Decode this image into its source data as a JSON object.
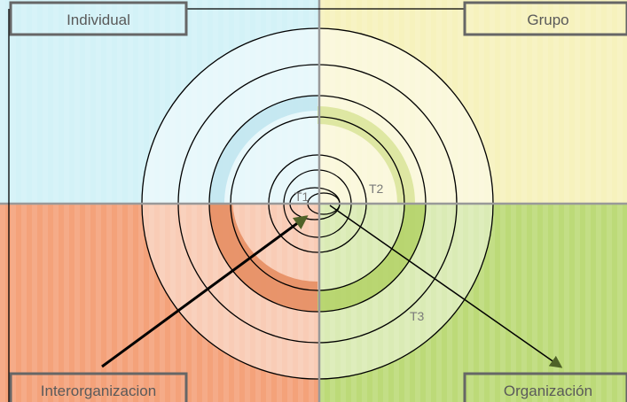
{
  "quadrants": {
    "top_left": {
      "label": "Individual",
      "color": "#d3f2f7"
    },
    "top_right": {
      "label": "Grupo",
      "color": "#f6f2bd"
    },
    "bottom_left": {
      "label": "Interorganizacion",
      "color": "#f4a27a"
    },
    "bottom_right": {
      "label": "Organización",
      "color": "#bcda78"
    }
  },
  "rings": {
    "t1": "T1",
    "t2": "T2",
    "t3": "T3"
  },
  "colors": {
    "outline": "#000000",
    "label_border": "#666666",
    "axis": "#999999",
    "arrow_head": "#4f6228"
  }
}
